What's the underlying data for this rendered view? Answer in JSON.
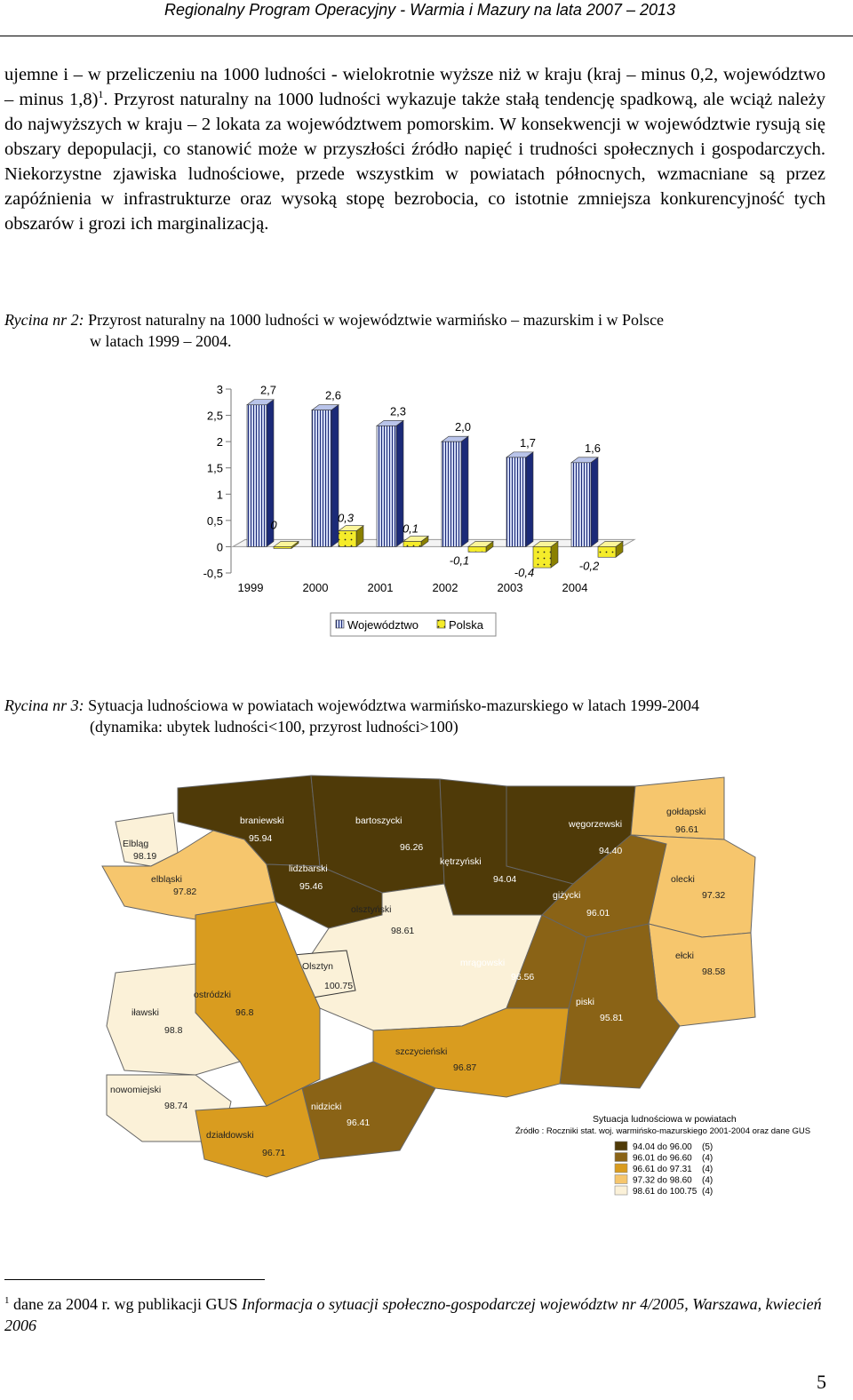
{
  "header": {
    "title": "Regionalny Program Operacyjny - Warmia i Mazury na lata 2007 – 2013"
  },
  "body": {
    "p1_a": "ujemne i – w przeliczeniu na 1000 ludności - wielokrotnie wyższe niż w kraju (kraj – minus 0,2, województwo – minus 1,8)",
    "p1_ref": "1",
    "p1_b": ". Przyrost naturalny na 1000 ludności wykazuje także stałą tendencję spadkową, ale wciąż należy do najwyższych w kraju – 2 lokata za województwem pomorskim. W konsekwencji w województwie rysują się obszary depopulacji, co stanowić może w przyszłości źródło napięć i trudności społecznych i gospodarczych. Niekorzystne zjawiska ludnościowe, przede wszystkim w powiatach północnych, wzmacniane są przez zapóźnienia w infrastrukturze oraz wysoką stopę bezrobocia, co istotnie zmniejsza konkurencyjność tych obszarów i grozi ich marginalizacją."
  },
  "figure2": {
    "label": "Rycina nr 2:",
    "title_line1": "Przyrost naturalny na 1000 ludności w województwie warmińsko – mazurskim i w Polsce",
    "title_line2": "w latach 1999 – 2004."
  },
  "chart_data": {
    "type": "bar",
    "categories": [
      "1999",
      "2000",
      "2001",
      "2002",
      "2003",
      "2004"
    ],
    "series": [
      {
        "name": "Województwo",
        "values": [
          2.7,
          2.6,
          2.3,
          2.0,
          1.7,
          1.6
        ],
        "labels": [
          "2,7",
          "2,6",
          "2,3",
          "2,0",
          "1,7",
          "1,6"
        ],
        "color": "#8fa0d8"
      },
      {
        "name": "Polska",
        "values": [
          0.0,
          0.3,
          0.1,
          -0.1,
          -0.4,
          -0.2
        ],
        "labels": [
          "0",
          "0,3",
          "0,1",
          "-0,1",
          "-0,4",
          "-0,2"
        ],
        "color": "#f5ec2a"
      }
    ],
    "ylim": [
      -0.5,
      3
    ],
    "yticks": [
      "3",
      "2,5",
      "2",
      "1,5",
      "1",
      "0,5",
      "0",
      "-0,5"
    ],
    "legend_position": "bottom"
  },
  "figure3": {
    "label": "Rycina nr 3:",
    "title_line1": "Sytuacja ludnościowa w powiatach województwa warmińsko-mazurskiego w latach 1999-2004",
    "title_line2": "(dynamika: ubytek ludności<100, przyrost ludności>100)"
  },
  "map": {
    "legend_title": "Sytuacja ludnościowa w powiatach",
    "legend_source": "Źródło : Roczniki stat. woj. warmińsko-mazurskiego 2001-2004 oraz dane GUS",
    "legend": [
      {
        "range": "94.04 do  96.00",
        "count": "(5)",
        "color": "#4f3a08"
      },
      {
        "range": "96.01 do  96.60",
        "count": "(4)",
        "color": "#8a6316"
      },
      {
        "range": "96.61 do  97.31",
        "count": "(4)",
        "color": "#d99c1f"
      },
      {
        "range": "97.32 do  98.60",
        "count": "(4)",
        "color": "#f6c66d"
      },
      {
        "range": "98.61 do 100.75",
        "count": "(4)",
        "color": "#fbf1d8"
      }
    ],
    "regions": [
      {
        "name": "braniewski",
        "value": "95.94"
      },
      {
        "name": "bartoszycki",
        "value": "96.26"
      },
      {
        "name": "węgorzewski",
        "value": "94.40"
      },
      {
        "name": "gołdapski",
        "value": "96.61"
      },
      {
        "name": "Elbląg",
        "value": "98.19"
      },
      {
        "name": "elbląski",
        "value": "97.82"
      },
      {
        "name": "lidzbarski",
        "value": "95.46"
      },
      {
        "name": "kętrzyński",
        "value": "94.04"
      },
      {
        "name": "giżycki",
        "value": "96.01"
      },
      {
        "name": "olecki",
        "value": "97.32"
      },
      {
        "name": "olsztyński",
        "value": "98.61"
      },
      {
        "name": "Olsztyn",
        "value": "100.75"
      },
      {
        "name": "mrągowski",
        "value": "96.56"
      },
      {
        "name": "ełcki",
        "value": "98.58"
      },
      {
        "name": "ostródzki",
        "value": "96.8"
      },
      {
        "name": "iławski",
        "value": "98.8"
      },
      {
        "name": "piski",
        "value": "95.81"
      },
      {
        "name": "szczycieński",
        "value": "96.87"
      },
      {
        "name": "nowomiejski",
        "value": "98.74"
      },
      {
        "name": "nidzicki",
        "value": "96.41"
      },
      {
        "name": "działdowski",
        "value": "96.71"
      }
    ]
  },
  "footnote": {
    "ref": "1",
    "text_a": " dane za 2004 r. wg publikacji GUS ",
    "text_b": "Informacja o sytuacji społeczno-gospodarczej województw nr 4/2005, Warszawa, kwiecień 2006"
  },
  "page_number": "5"
}
